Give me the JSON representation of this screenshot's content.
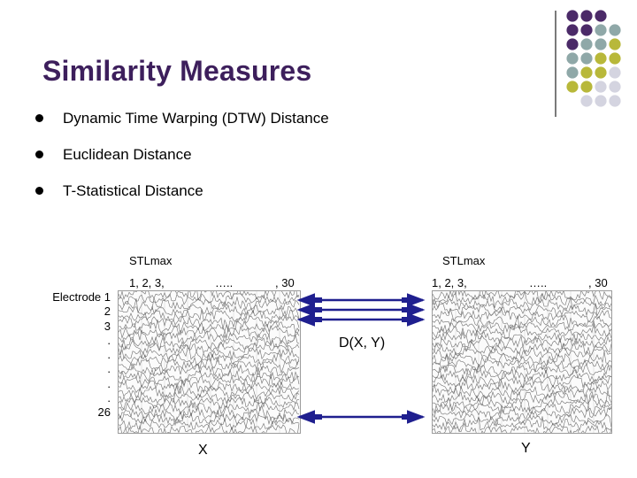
{
  "title": "Similarity Measures",
  "bullets": [
    "Dynamic Time Warping (DTW) Distance",
    "Euclidean Distance",
    "T-Statistical Distance"
  ],
  "left_panel": {
    "header": "STLmax",
    "cols_start": "1, 2, 3,",
    "cols_mid": "…..",
    "cols_end": ", 30",
    "caption": "X"
  },
  "right_panel": {
    "header": "STLmax",
    "cols_start": "1, 2, 3,",
    "cols_mid": "…..",
    "cols_end": ", 30",
    "caption": "Y"
  },
  "electrode_labels": [
    "Electrode 1",
    "2",
    "3",
    ".",
    ".",
    ".",
    ".",
    ".",
    "26"
  ],
  "distance_label": "D(X, Y)",
  "colors": {
    "title": "#3d1f5c",
    "arrow": "#1f1f8f",
    "dot_purple": "#4b2a68",
    "dot_teal": "#8fa8a8",
    "dot_olive": "#b8b83a",
    "dot_lavender": "#d4d4e0"
  }
}
